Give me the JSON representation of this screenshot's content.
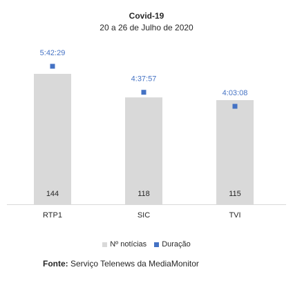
{
  "chart_data": {
    "type": "bar",
    "title": "Covid-19",
    "subtitle": "20 a 26 de Julho de 2020",
    "categories": [
      "RTP1",
      "SIC",
      "TVI"
    ],
    "series": [
      {
        "name": "Nº notícias",
        "type": "bar",
        "values": [
          144,
          118,
          115
        ],
        "color": "#d9d9d9"
      },
      {
        "name": "Duração",
        "type": "scatter",
        "values": [
          "5:42:29",
          "4:37:57",
          "4:03:08"
        ],
        "color": "#4472c4"
      }
    ],
    "legend_position": "bottom",
    "grid": false
  },
  "source": {
    "label": "Fonte:",
    "text": "Serviço Telenews da MediaMonitor"
  },
  "colors": {
    "bar": "#d9d9d9",
    "marker": "#4472c4",
    "duration_label": "#4472c4"
  }
}
